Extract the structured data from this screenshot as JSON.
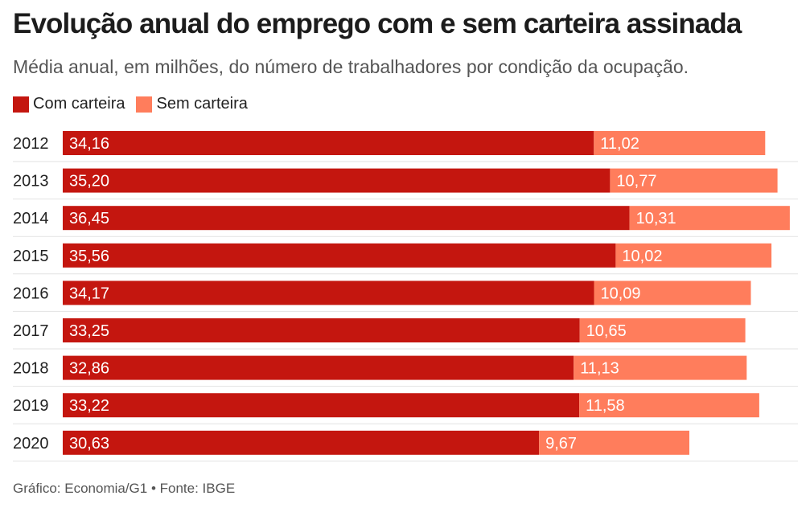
{
  "header": {
    "title": "Evolução anual do emprego com e sem carteira assinada",
    "subtitle": "Média anual, em milhões, do número de trabalhadores por condição da ocupação."
  },
  "legend": {
    "items": [
      {
        "label": "Com carteira",
        "color": "#c4160f"
      },
      {
        "label": "Sem carteira",
        "color": "#ff7d5c"
      }
    ]
  },
  "footer": {
    "credit": "Gráfico: Economia/G1 • Fonte: IBGE"
  },
  "chart_data": {
    "type": "bar",
    "orientation": "horizontal",
    "stacked": true,
    "title": "Evolução anual do emprego com e sem carteira assinada",
    "subtitle": "Média anual, em milhões, do número de trabalhadores por condição da ocupação.",
    "categories": [
      "2012",
      "2013",
      "2014",
      "2015",
      "2016",
      "2017",
      "2018",
      "2019",
      "2020"
    ],
    "series": [
      {
        "name": "Com carteira",
        "color": "#c4160f",
        "values": [
          34.16,
          35.2,
          36.45,
          35.56,
          34.17,
          33.25,
          32.86,
          33.22,
          30.63
        ],
        "labels": [
          "34,16",
          "35,20",
          "36,45",
          "35,56",
          "34,17",
          "33,25",
          "32,86",
          "33,22",
          "30,63"
        ]
      },
      {
        "name": "Sem carteira",
        "color": "#ff7d5c",
        "values": [
          11.02,
          10.77,
          10.31,
          10.02,
          10.09,
          10.65,
          11.13,
          11.58,
          9.67
        ],
        "labels": [
          "11,02",
          "10,77",
          "10,31",
          "10,02",
          "10,09",
          "10,65",
          "11,13",
          "11,58",
          "9,67"
        ]
      }
    ],
    "legend_position": "top-left",
    "grid": true
  }
}
